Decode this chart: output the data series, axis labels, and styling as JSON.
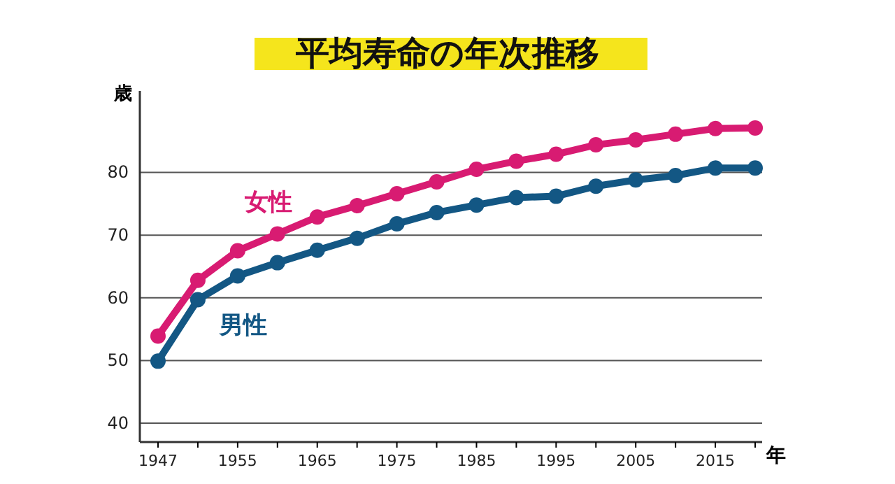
{
  "chart_data": {
    "type": "line",
    "title": "平均寿命の年次推移",
    "xlabel": "年",
    "ylabel": "歳",
    "categories": [
      "1947",
      null,
      "1955",
      null,
      "1965",
      null,
      "1975",
      null,
      "1985",
      null,
      "1995",
      null,
      "2005",
      null,
      "2015",
      null
    ],
    "series": [
      {
        "name": "女性",
        "color": "#d81b72",
        "values": [
          53.9,
          62.8,
          67.5,
          70.2,
          72.9,
          74.7,
          76.6,
          78.5,
          80.5,
          81.8,
          82.9,
          84.4,
          85.2,
          86.1,
          87.0,
          87.1
        ]
      },
      {
        "name": "男性",
        "color": "#135784",
        "values": [
          49.9,
          59.7,
          63.5,
          65.6,
          67.6,
          69.5,
          71.8,
          73.6,
          74.8,
          76.0,
          76.2,
          77.8,
          78.8,
          79.5,
          80.7,
          80.7
        ]
      }
    ],
    "ylim": [
      37,
      93
    ],
    "yticks": [
      40,
      50,
      60,
      70,
      80
    ],
    "grid": "y",
    "marker": "circle",
    "line_style": "solid"
  }
}
